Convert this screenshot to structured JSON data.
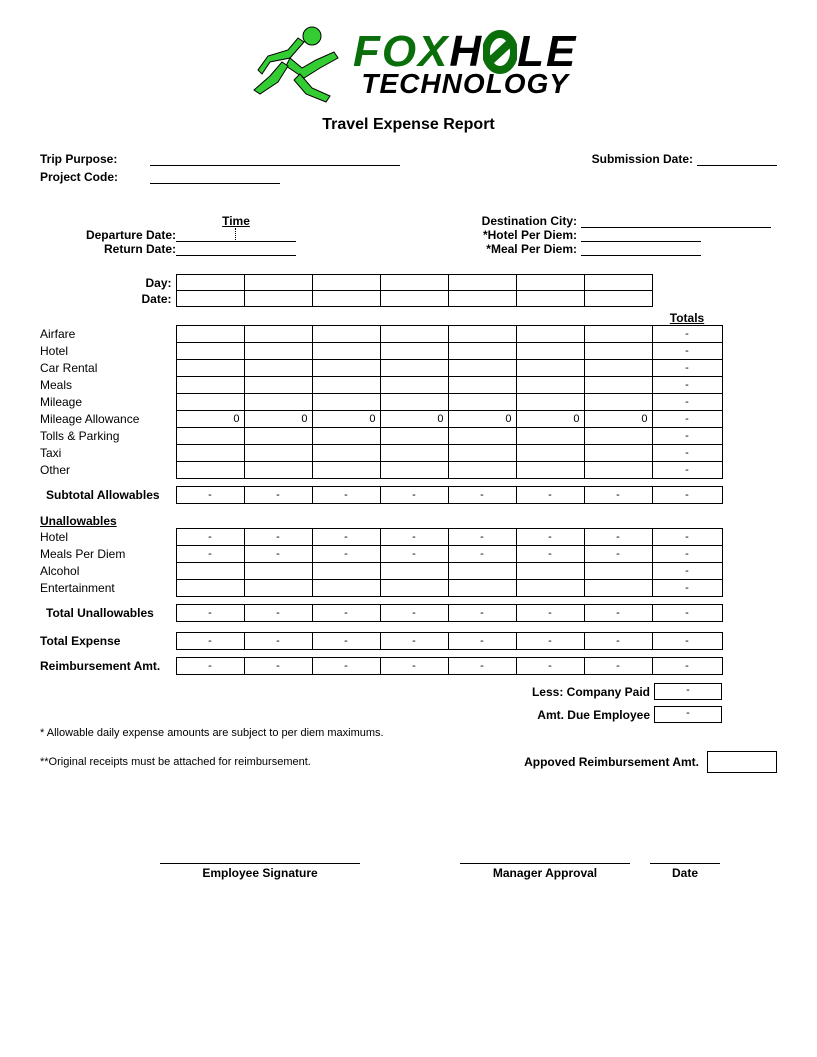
{
  "logo": {
    "top_green": "FOX",
    "top_black1": "H",
    "top_black2": "LE",
    "bottom": "TECHNOLOGY"
  },
  "title": "Travel Expense Report",
  "header": {
    "trip_purpose": "Trip Purpose:",
    "project_code": "Project Code:",
    "submission_date": "Submission Date:",
    "time": "Time",
    "departure_date": "Departure Date:",
    "return_date": "Return Date:",
    "destination_city": "Destination City:",
    "hotel_per_diem": "*Hotel Per Diem:",
    "meal_per_diem": "*Meal Per Diem:",
    "day": "Day:",
    "date": "Date:"
  },
  "totals_hdr": "Totals",
  "allowables": {
    "rows": [
      "Airfare",
      "Hotel",
      "Car Rental",
      "Meals",
      "Mileage",
      "Mileage Allowance",
      "Tolls & Parking",
      "Taxi",
      "Other"
    ],
    "mileage_allowance_vals": [
      "0",
      "0",
      "0",
      "0",
      "0",
      "0",
      "0",
      "-"
    ],
    "subtotal": "Subtotal Allowables"
  },
  "unallowables": {
    "hdr": "Unallowables",
    "rows": [
      "Hotel",
      "Meals Per Diem",
      "Alcohol",
      "Entertainment"
    ],
    "with_dashes": [
      true,
      true,
      false,
      false
    ],
    "total": "Total Unallowables"
  },
  "totals": {
    "total_expense": "Total Expense",
    "reimbursement": "Reimbursement Amt.",
    "less_company": "Less: Company Paid",
    "amt_due": "Amt. Due Employee",
    "approved": "Appoved Reimbursement Amt."
  },
  "footnotes": {
    "f1": "* Allowable daily expense amounts are subject to per diem maximums.",
    "f2": "**Original receipts must be attached for reimbursement."
  },
  "sigs": {
    "emp": "Employee Signature",
    "mgr": "Manager Approval",
    "date": "Date"
  },
  "cols": 7,
  "widths": {
    "label": 136,
    "col": 68,
    "total": 70
  },
  "colors": {
    "green": "#0a6e0a",
    "black": "#000000",
    "runner_green": "#33cc33"
  }
}
